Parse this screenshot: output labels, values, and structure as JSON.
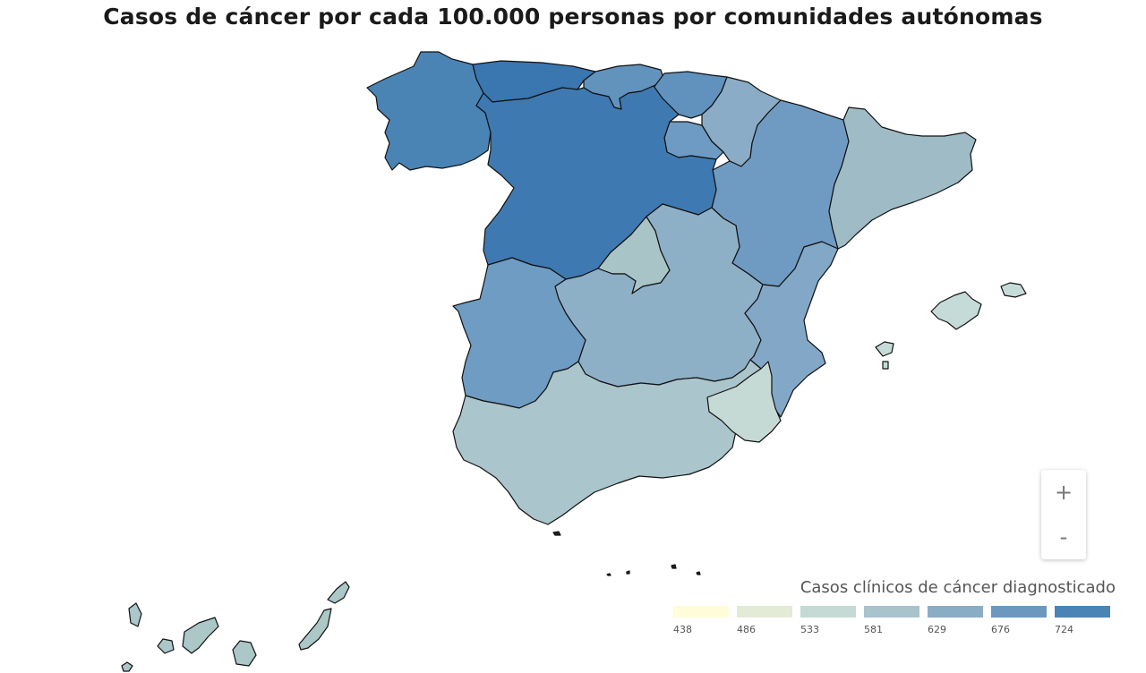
{
  "title": "Casos de cáncer por cada 100.000 personas por comunidades autónomas",
  "map": {
    "regions": [
      {
        "name": "Galicia",
        "color": "#4a84b5"
      },
      {
        "name": "Asturias",
        "color": "#3a76b0"
      },
      {
        "name": "Cantabria",
        "color": "#6293bd"
      },
      {
        "name": "País Vasco",
        "color": "#6092bd"
      },
      {
        "name": "Navarra",
        "color": "#8aacc6"
      },
      {
        "name": "La Rioja",
        "color": "#6e9bc3"
      },
      {
        "name": "Aragón",
        "color": "#6f9bc2"
      },
      {
        "name": "Cataluña",
        "color": "#9fbcc6"
      },
      {
        "name": "Castilla y León",
        "color": "#3e7ab1"
      },
      {
        "name": "Comunidad de Madrid",
        "color": "#a9c4c7"
      },
      {
        "name": "Castilla-La Mancha",
        "color": "#8eb0c7"
      },
      {
        "name": "Comunidad Valenciana",
        "color": "#83a8c7"
      },
      {
        "name": "Extremadura",
        "color": "#6f9cc3"
      },
      {
        "name": "Andalucía",
        "color": "#aac5cb"
      },
      {
        "name": "Región de Murcia",
        "color": "#c6dad5"
      },
      {
        "name": "Islas Baleares",
        "color": "#c5dbd7"
      },
      {
        "name": "Canarias",
        "color": "#abc7c8"
      }
    ]
  },
  "zoom": {
    "in_label": "+",
    "out_label": "-"
  },
  "legend": {
    "title": "Casos clínicos de cáncer diagnosticado",
    "items": [
      {
        "label": "438",
        "color": "#fefdd8"
      },
      {
        "label": "486",
        "color": "#e3ead6"
      },
      {
        "label": "533",
        "color": "#c6dad5"
      },
      {
        "label": "581",
        "color": "#a8c3cc"
      },
      {
        "label": "629",
        "color": "#8aadc6"
      },
      {
        "label": "676",
        "color": "#6c98c0"
      },
      {
        "label": "724",
        "color": "#4a84b5"
      }
    ]
  }
}
